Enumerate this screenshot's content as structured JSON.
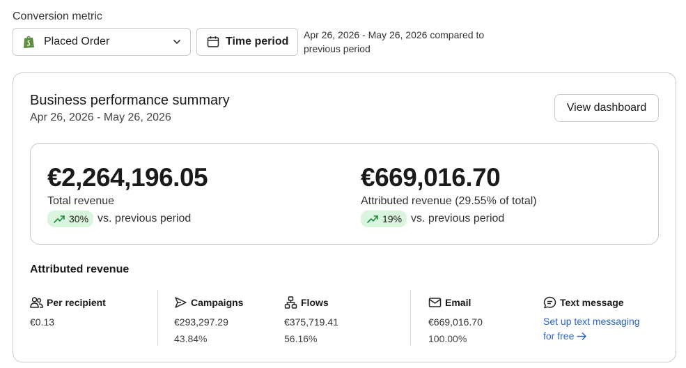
{
  "filters": {
    "metric_label": "Conversion metric",
    "metric_value": "Placed Order",
    "time_button": "Time period",
    "date_note": "Apr 26, 2026 - May 26, 2026 compared to previous period"
  },
  "summary": {
    "title": "Business performance summary",
    "date_range": "Apr 26, 2026 - May 26, 2026",
    "view_button": "View dashboard",
    "total": {
      "value": "€2,264,196.05",
      "label": "Total revenue",
      "change": "30%",
      "vs": "vs. previous period"
    },
    "attributed": {
      "value": "€669,016.70",
      "label": "Attributed revenue (29.55% of total)",
      "change": "19%",
      "vs": "vs. previous period"
    }
  },
  "attributed_revenue": {
    "title": "Attributed revenue",
    "per_recipient": {
      "label": "Per recipient",
      "value": "€0.13"
    },
    "campaigns": {
      "label": "Campaigns",
      "value": "€293,297.29",
      "share": "43.84%"
    },
    "flows": {
      "label": "Flows",
      "value": "€375,719.41",
      "share": "56.16%"
    },
    "email": {
      "label": "Email",
      "value": "€669,016.70",
      "share": "100.00%"
    },
    "text_message": {
      "label": "Text message",
      "link": "Set up text messaging for free"
    }
  },
  "colors": {
    "badge_bg": "#d9f5de",
    "trend_green": "#1f8a3c",
    "link_blue": "#2a62c9",
    "shopify_green": "#5e8e3e"
  }
}
